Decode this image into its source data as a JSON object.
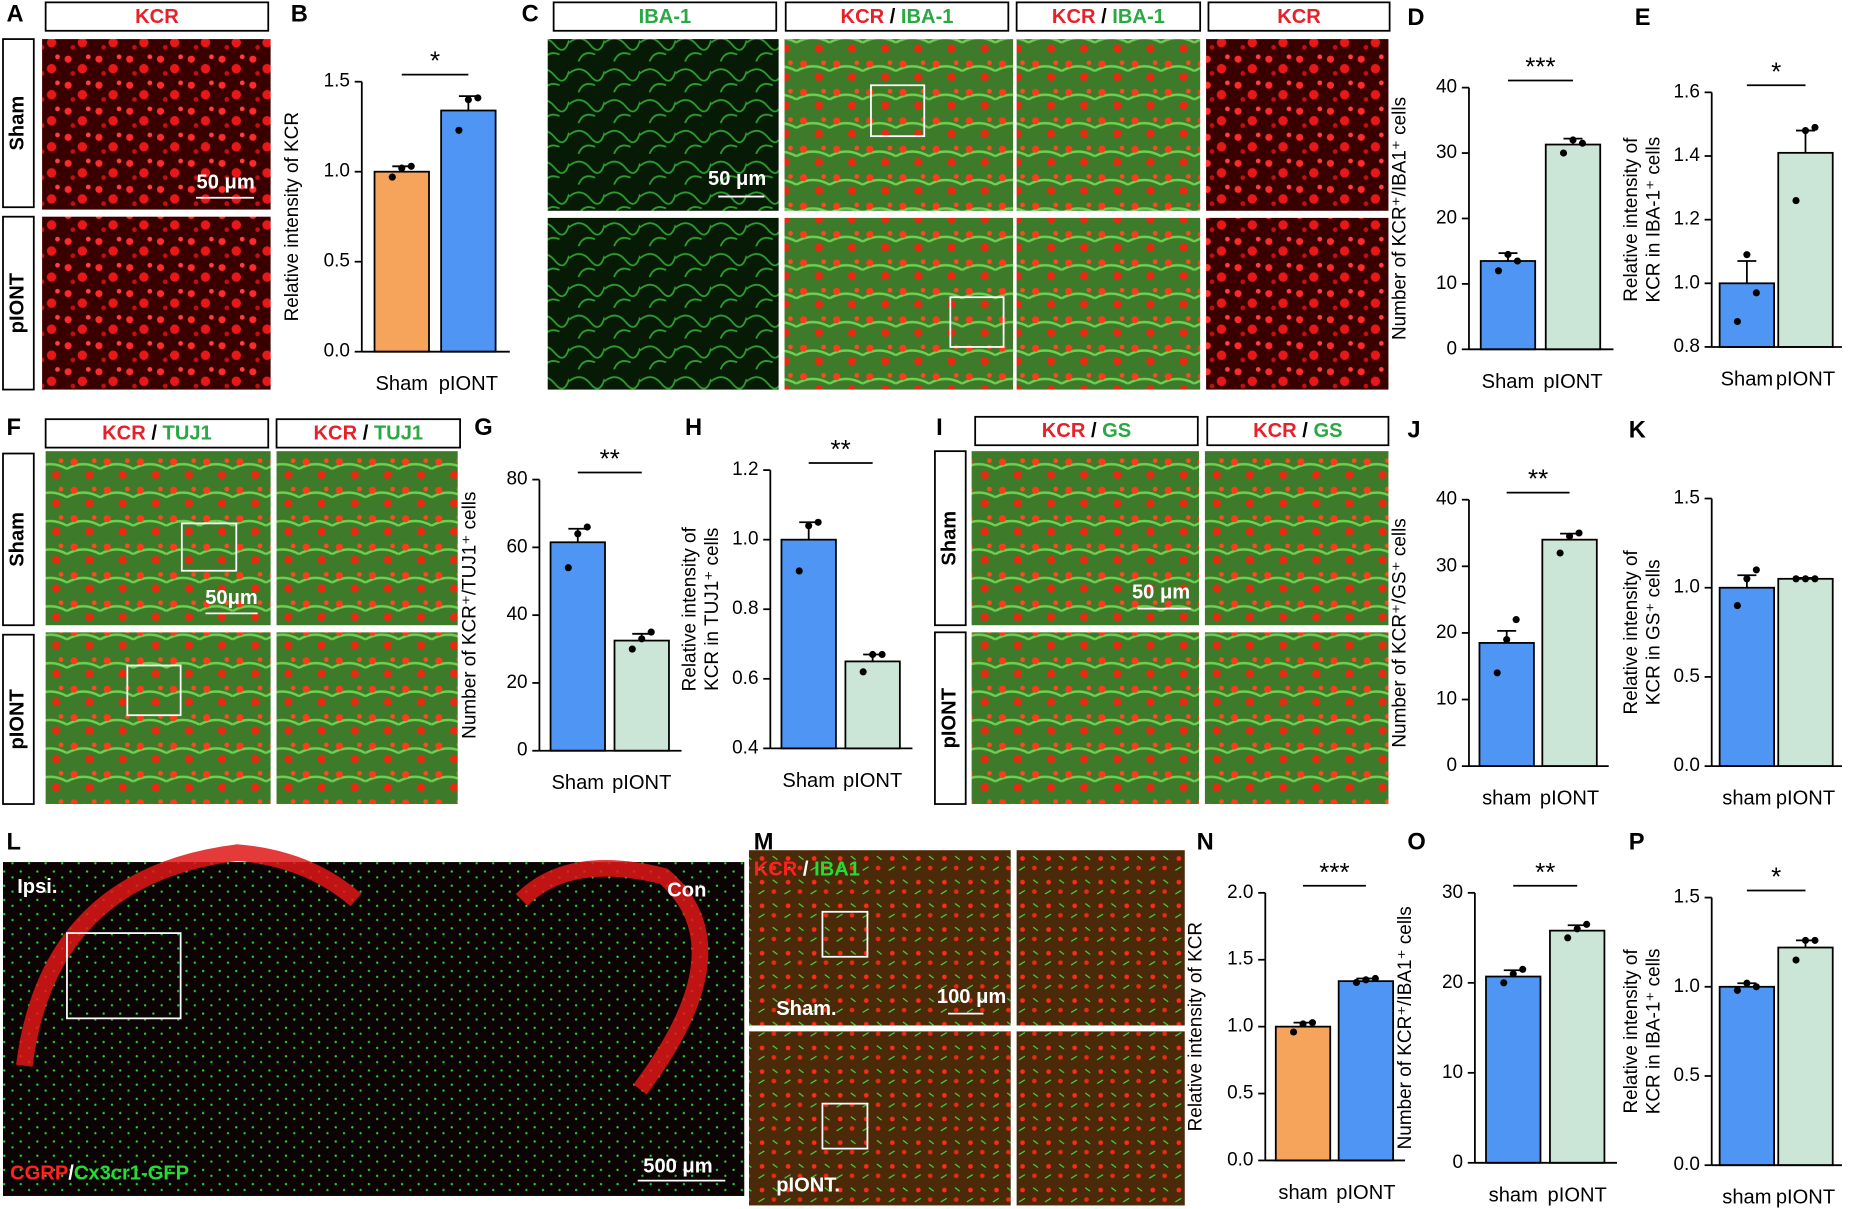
{
  "panel_letters": [
    "A",
    "B",
    "C",
    "D",
    "E",
    "F",
    "G",
    "H",
    "I",
    "J",
    "K",
    "L",
    "M",
    "N",
    "O",
    "P"
  ],
  "headers": [
    {
      "parts": [
        {
          "text": "KCR",
          "color": "#e8202a"
        }
      ]
    },
    {
      "parts": [
        {
          "text": "IBA-1",
          "color": "#2aa844"
        }
      ]
    },
    {
      "parts": [
        {
          "text": "KCR",
          "color": "#e8202a"
        },
        {
          "text": " / ",
          "color": "#000000"
        },
        {
          "text": "IBA-1",
          "color": "#2aa844"
        }
      ]
    },
    {
      "parts": [
        {
          "text": "KCR",
          "color": "#e8202a"
        },
        {
          "text": " / ",
          "color": "#000000"
        },
        {
          "text": "IBA-1",
          "color": "#2aa844"
        }
      ]
    },
    {
      "parts": [
        {
          "text": "KCR",
          "color": "#e8202a"
        }
      ]
    },
    {
      "parts": [
        {
          "text": "KCR",
          "color": "#e8202a"
        },
        {
          "text": " / ",
          "color": "#000000"
        },
        {
          "text": "TUJ1",
          "color": "#2aa844"
        }
      ]
    },
    {
      "parts": [
        {
          "text": "KCR",
          "color": "#e8202a"
        },
        {
          "text": " / ",
          "color": "#000000"
        },
        {
          "text": "TUJ1",
          "color": "#2aa844"
        }
      ]
    },
    {
      "parts": [
        {
          "text": "KCR",
          "color": "#e8202a"
        },
        {
          "text": " / ",
          "color": "#000000"
        },
        {
          "text": "GS",
          "color": "#2aa844"
        }
      ]
    },
    {
      "parts": [
        {
          "text": "KCR",
          "color": "#e8202a"
        },
        {
          "text": " / ",
          "color": "#000000"
        },
        {
          "text": "GS",
          "color": "#2aa844"
        }
      ]
    }
  ],
  "row_labels": [
    "Sham",
    "pIONT",
    "Sham",
    "pIONT",
    "Sham",
    "pIONT"
  ],
  "image_texts": [
    {
      "parts": [
        {
          "text": "50 μm",
          "color": "#ffffff"
        }
      ]
    },
    {
      "parts": [
        {
          "text": "50 μm",
          "color": "#ffffff"
        }
      ]
    },
    {
      "parts": [
        {
          "text": "50μm",
          "color": "#ffffff"
        }
      ]
    },
    {
      "parts": [
        {
          "text": "50 μm",
          "color": "#ffffff"
        }
      ]
    },
    {
      "parts": [
        {
          "text": "Ipsi.",
          "color": "#ffffff"
        }
      ]
    },
    {
      "parts": [
        {
          "text": "Con",
          "color": "#ffffff"
        }
      ]
    },
    {
      "parts": [
        {
          "text": "500 μm",
          "color": "#ffffff"
        }
      ]
    },
    {
      "parts": [
        {
          "text": "Sham.",
          "color": "#ffffff"
        }
      ]
    },
    {
      "parts": [
        {
          "text": "pIONT.",
          "color": "#ffffff"
        }
      ]
    },
    {
      "parts": [
        {
          "text": "100 μm",
          "color": "#ffffff"
        }
      ]
    },
    {
      "parts": [
        {
          "text": "CGRP",
          "color": "#ff2020"
        },
        {
          "text": "/",
          "color": "#ffffff"
        },
        {
          "text": "Cx3cr1-GFP",
          "color": "#22dd33"
        }
      ]
    },
    {
      "parts": [
        {
          "text": "KCR",
          "color": "#ff2020"
        },
        {
          "text": " / ",
          "color": "#ffffff"
        },
        {
          "text": "IBA1",
          "color": "#22dd33"
        }
      ]
    }
  ],
  "chart_data": [
    {
      "type": "bar",
      "ylabel": [
        "Relative intensity of KCR"
      ],
      "categories": [
        "Sham",
        "pIONT"
      ],
      "values": [
        1.0,
        1.34
      ],
      "errors": [
        0.03,
        0.08
      ],
      "points": [
        [
          0.97,
          1.02,
          1.03
        ],
        [
          1.23,
          1.4,
          1.41
        ]
      ],
      "colors": [
        "#f6a35c",
        "#4f95f3"
      ],
      "ylim": [
        0,
        1.5
      ],
      "yticks": [
        {
          "value": 0,
          "label": "0.0"
        },
        0.5,
        {
          "value": 1,
          "label": "1.0"
        },
        1.5
      ],
      "significance": "*"
    },
    {
      "type": "bar",
      "ylabel": [
        "Number of KCR⁺/IBA1⁺ cells"
      ],
      "categories": [
        "Sham",
        "pIONT"
      ],
      "values": [
        13.5,
        31.3
      ],
      "errors": [
        1.2,
        0.9
      ],
      "points": [
        [
          12,
          14.5,
          13.5
        ],
        [
          30,
          32,
          31.5
        ]
      ],
      "colors": [
        "#4f95f3",
        "#cbe6d6"
      ],
      "ylim": [
        0,
        40
      ],
      "yticks": [
        0,
        10,
        20,
        30,
        40
      ],
      "significance": "***"
    },
    {
      "type": "bar",
      "ylabel": [
        "Relative intensity of",
        "KCR in IBA-1⁺ cells"
      ],
      "categories": [
        "Sham",
        "pIONT"
      ],
      "values": [
        1.0,
        1.41
      ],
      "errors": [
        0.07,
        0.07
      ],
      "points": [
        [
          0.88,
          1.09,
          0.97
        ],
        [
          1.26,
          1.48,
          1.49
        ]
      ],
      "colors": [
        "#4f95f3",
        "#cbe6d6"
      ],
      "ylim": [
        0.8,
        1.6
      ],
      "yticks": [
        0.8,
        {
          "value": 1,
          "label": "1.0"
        },
        1.2,
        1.4,
        1.6
      ],
      "significance": "*"
    },
    {
      "type": "bar",
      "ylabel": [
        "Number of KCR⁺/TUJ1⁺ cells"
      ],
      "categories": [
        "Sham",
        "pIONT"
      ],
      "values": [
        61.5,
        32.5
      ],
      "errors": [
        4,
        2
      ],
      "points": [
        [
          54,
          64,
          66
        ],
        [
          30,
          33,
          35
        ]
      ],
      "colors": [
        "#4f95f3",
        "#cbe6d6"
      ],
      "ylim": [
        0,
        80
      ],
      "yticks": [
        0,
        20,
        40,
        60,
        80
      ],
      "significance": "**"
    },
    {
      "type": "bar",
      "ylabel": [
        "Relative intensity of",
        "KCR in TUJ1⁺ cells"
      ],
      "categories": [
        "Sham",
        "pIONT"
      ],
      "values": [
        1.0,
        0.65
      ],
      "errors": [
        0.05,
        0.02
      ],
      "points": [
        [
          0.91,
          1.04,
          1.05
        ],
        [
          0.62,
          0.67,
          0.67
        ]
      ],
      "colors": [
        "#4f95f3",
        "#cbe6d6"
      ],
      "ylim": [
        0.4,
        1.2
      ],
      "yticks": [
        0.4,
        0.6,
        0.8,
        {
          "value": 1,
          "label": "1.0"
        },
        1.2
      ],
      "significance": "**"
    },
    {
      "type": "bar",
      "ylabel": [
        "Number of KCR⁺/GS⁺ cells"
      ],
      "categories": [
        "sham",
        "pIONT"
      ],
      "values": [
        18.5,
        34
      ],
      "errors": [
        1.8,
        0.9
      ],
      "points": [
        [
          14,
          19,
          22
        ],
        [
          32,
          34.5,
          35
        ]
      ],
      "colors": [
        "#4f95f3",
        "#cbe6d6"
      ],
      "ylim": [
        0,
        40
      ],
      "yticks": [
        0,
        10,
        20,
        30,
        40
      ],
      "significance": "**"
    },
    {
      "type": "bar",
      "ylabel": [
        "Relative intensity of",
        "KCR in GS⁺ cells"
      ],
      "categories": [
        "sham",
        "pIONT"
      ],
      "values": [
        1.0,
        1.05
      ],
      "errors": [
        0.07,
        0.005
      ],
      "points": [
        [
          0.9,
          1.05,
          1.1
        ],
        [
          1.05,
          1.05,
          1.05
        ]
      ],
      "colors": [
        "#4f95f3",
        "#cbe6d6"
      ],
      "ylim": [
        0,
        1.5
      ],
      "yticks": [
        {
          "value": 0,
          "label": "0.0"
        },
        0.5,
        {
          "value": 1,
          "label": "1.0"
        },
        1.5
      ]
    },
    {
      "type": "bar",
      "ylabel": [
        "Relative intensity of KCR"
      ],
      "categories": [
        "sham",
        "pIONT"
      ],
      "values": [
        1.0,
        1.34
      ],
      "errors": [
        0.03,
        0.02
      ],
      "points": [
        [
          0.96,
          1.02,
          1.03
        ],
        [
          1.33,
          1.35,
          1.36
        ]
      ],
      "colors": [
        "#f6a35c",
        "#4f95f3"
      ],
      "ylim": [
        0,
        2
      ],
      "yticks": [
        {
          "value": 0,
          "label": "0.0"
        },
        0.5,
        {
          "value": 1,
          "label": "1.0"
        },
        1.5,
        {
          "value": 2,
          "label": "2.0"
        }
      ],
      "significance": "***"
    },
    {
      "type": "bar",
      "ylabel": [
        "Number of KCR⁺/IBA1⁺ cells"
      ],
      "categories": [
        "sham",
        "pIONT"
      ],
      "values": [
        20.7,
        25.8
      ],
      "errors": [
        0.7,
        0.6
      ],
      "points": [
        [
          20,
          21,
          21.5
        ],
        [
          25,
          26,
          26.5
        ]
      ],
      "colors": [
        "#4f95f3",
        "#cbe6d6"
      ],
      "ylim": [
        0,
        30
      ],
      "yticks": [
        0,
        10,
        20,
        30
      ],
      "significance": "**"
    },
    {
      "type": "bar",
      "ylabel": [
        "Relative intensity of",
        "KCR in IBA-1⁺ cells"
      ],
      "categories": [
        "sham",
        "pIONT"
      ],
      "values": [
        1.0,
        1.22
      ],
      "errors": [
        0.02,
        0.04
      ],
      "points": [
        [
          0.98,
          1.02,
          1.0
        ],
        [
          1.15,
          1.26,
          1.26
        ]
      ],
      "colors": [
        "#4f95f3",
        "#cbe6d6"
      ],
      "ylim": [
        0,
        1.5
      ],
      "yticks": [
        {
          "value": 0,
          "label": "0.0"
        },
        0.5,
        {
          "value": 1,
          "label": "1.0"
        },
        1.5
      ],
      "significance": "*"
    }
  ]
}
